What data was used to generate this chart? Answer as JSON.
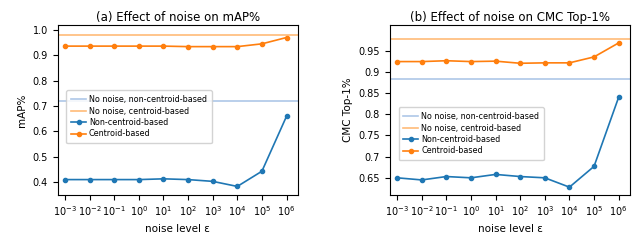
{
  "title_a": "(a) Effect of noise on mAP%",
  "title_b": "(b) Effect of noise on CMC Top-1%",
  "xlabel": "noise level ε",
  "ylabel_a": "mAP%",
  "ylabel_b": "CMC Top-1%",
  "x_vals": [
    0.001,
    0.01,
    0.1,
    1.0,
    10.0,
    100.0,
    1000.0,
    10000.0,
    100000.0,
    1000000.0
  ],
  "map_noncentroid": [
    0.41,
    0.41,
    0.41,
    0.41,
    0.413,
    0.41,
    0.403,
    0.383,
    0.443,
    0.66
  ],
  "map_centroid": [
    0.937,
    0.937,
    0.937,
    0.937,
    0.937,
    0.935,
    0.935,
    0.935,
    0.946,
    0.971
  ],
  "map_noncentroid_baseline": 0.722,
  "map_centroid_baseline": 0.98,
  "cmc_noncentroid": [
    0.65,
    0.645,
    0.653,
    0.65,
    0.658,
    0.653,
    0.65,
    0.628,
    0.677,
    0.84
  ],
  "cmc_centroid": [
    0.924,
    0.924,
    0.926,
    0.924,
    0.925,
    0.92,
    0.921,
    0.921,
    0.935,
    0.968
  ],
  "cmc_noncentroid_baseline": 0.882,
  "cmc_centroid_baseline": 0.978,
  "color_blue": "#1f77b4",
  "color_orange": "#ff7f0e",
  "color_blue_light": "#aec7e8",
  "color_orange_light": "#ffbb78",
  "legend_labels": [
    "No noise, non-centroid-based",
    "No noise, centroid-based",
    "Non-centroid-based",
    "Centroid-based"
  ],
  "map_ylim": [
    0.35,
    1.02
  ],
  "map_yticks": [
    0.4,
    0.5,
    0.6,
    0.7,
    0.8,
    0.9,
    1.0
  ],
  "cmc_ylim": [
    0.61,
    1.01
  ],
  "cmc_yticks": [
    0.65,
    0.7,
    0.75,
    0.8,
    0.85,
    0.9,
    0.95
  ]
}
